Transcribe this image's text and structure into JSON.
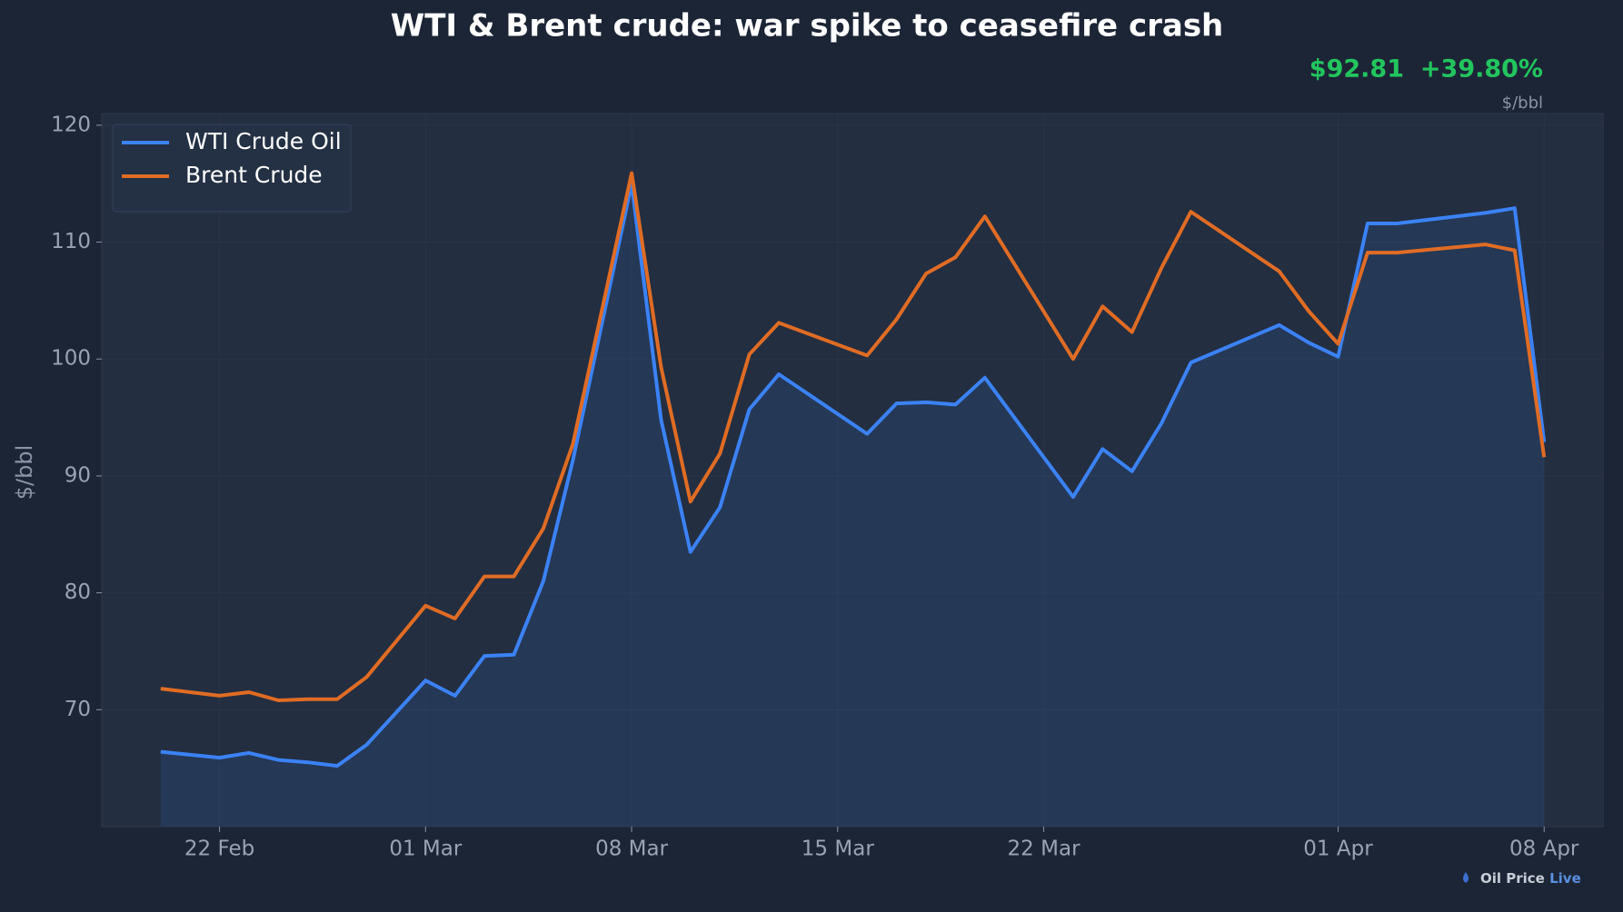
{
  "chart_data": {
    "type": "line",
    "title": "WTI & Brent crude: war spike to ceasefire crash",
    "price": "$92.81",
    "change": "+39.80%",
    "unit": "$/bbl",
    "ylabel": "$/bbl",
    "watermark": "Oil Price Live",
    "watermark_prefix": "Oil Price",
    "watermark_suffix": "Live",
    "x": [
      "20 Feb",
      "22 Feb",
      "23 Feb",
      "24 Feb",
      "25 Feb",
      "26 Feb",
      "27 Feb",
      "01 Mar",
      "02 Mar",
      "03 Mar",
      "04 Mar",
      "05 Mar",
      "06 Mar",
      "08 Mar",
      "09 Mar",
      "10 Mar",
      "11 Mar",
      "12 Mar",
      "13 Mar",
      "16 Mar",
      "17 Mar",
      "18 Mar",
      "19 Mar",
      "20 Mar",
      "23 Mar",
      "24 Mar",
      "25 Mar",
      "26 Mar",
      "27 Mar",
      "30 Mar",
      "31 Mar",
      "01 Apr",
      "02 Apr",
      "03 Apr",
      "06 Apr",
      "07 Apr",
      "08 Apr"
    ],
    "series": [
      {
        "name": "WTI Crude Oil",
        "color": "#3b82f6",
        "values": [
          66.4,
          65.9,
          66.3,
          65.7,
          65.5,
          65.2,
          67.0,
          72.5,
          71.2,
          74.6,
          74.7,
          81.0,
          91.3,
          115.0,
          94.8,
          83.5,
          87.3,
          95.7,
          98.7,
          93.6,
          96.2,
          96.3,
          96.1,
          98.4,
          88.2,
          92.3,
          90.4,
          94.5,
          99.7,
          102.9,
          101.4,
          100.2,
          111.6,
          111.6,
          112.5,
          112.9,
          92.9
        ]
      },
      {
        "name": "Brent Crude",
        "color": "#e06c24",
        "values": [
          71.8,
          71.2,
          71.5,
          70.8,
          70.9,
          70.9,
          72.8,
          78.9,
          77.8,
          81.4,
          81.4,
          85.5,
          92.7,
          115.9,
          99.3,
          87.8,
          91.9,
          100.4,
          103.1,
          100.3,
          103.4,
          107.3,
          108.7,
          112.2,
          100.0,
          104.5,
          102.3,
          107.8,
          112.6,
          107.5,
          104.1,
          101.3,
          109.1,
          109.1,
          109.8,
          109.3,
          91.6
        ]
      }
    ],
    "xlim": [
      "18 Feb",
      "10 Apr"
    ],
    "xticks": [
      "22 Feb",
      "01 Mar",
      "08 Mar",
      "15 Mar",
      "22 Mar",
      "01 Apr",
      "08 Apr"
    ],
    "ylim": [
      60,
      121
    ],
    "yticks": [
      70,
      80,
      90,
      100,
      110,
      120
    ],
    "grid": true,
    "legend": "upper left",
    "area": true
  }
}
